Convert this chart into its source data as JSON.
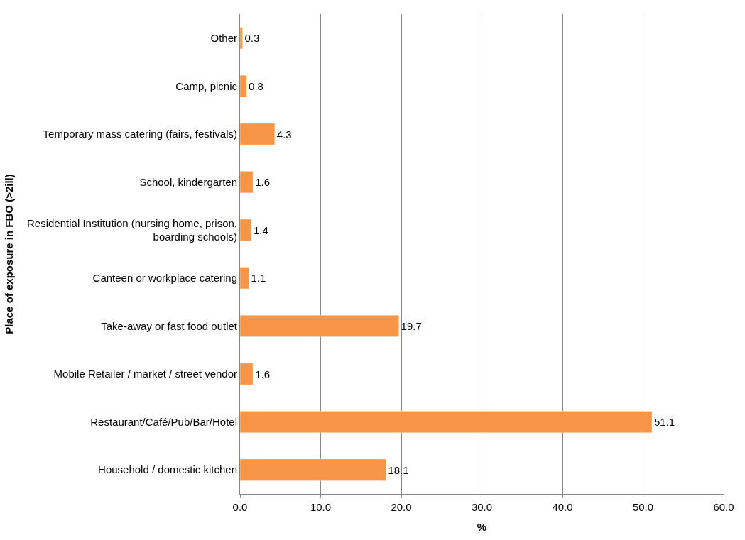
{
  "chart_data": {
    "type": "bar",
    "orientation": "horizontal",
    "xlabel": "%",
    "ylabel": "Place of exposure in FBO (>2ill)",
    "categories": [
      "Other",
      "Camp, picnic",
      "Temporary mass catering (fairs, festivals)",
      "School, kindergarten",
      "Residential Institution (nursing home, prison, boarding schools)",
      "Canteen or workplace catering",
      "Take-away or fast food outlet",
      "Mobile Retailer / market / street vendor",
      "Restaurant/Café/Pub/Bar/Hotel",
      "Household / domestic kitchen"
    ],
    "values": [
      0.3,
      0.8,
      4.3,
      1.6,
      1.4,
      1.1,
      19.7,
      1.6,
      51.1,
      18.1
    ],
    "color": "#f79646",
    "data_labels": true,
    "xlim": [
      0,
      60
    ],
    "xticks": [
      {
        "value": 0,
        "label": "0.0"
      },
      {
        "value": 10,
        "label": "10.0"
      },
      {
        "value": 20,
        "label": "20.0"
      },
      {
        "value": 30,
        "label": "30.0"
      },
      {
        "value": 40,
        "label": "40.0"
      },
      {
        "value": 50,
        "label": "50.0"
      },
      {
        "value": 60,
        "label": "60.0"
      }
    ],
    "grid": "x"
  }
}
